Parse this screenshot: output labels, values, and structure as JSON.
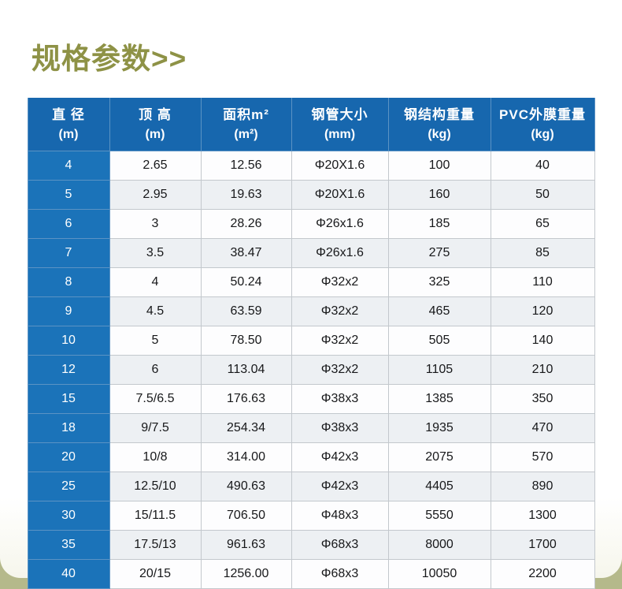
{
  "page": {
    "title": "规格参数>>"
  },
  "colors": {
    "header_bg": "#1767ae",
    "row_header_bg": "#1b73b9",
    "title_color": "#8e9246",
    "alt_row_bg": "#edf0f3",
    "grid_line": "#c3c8cd",
    "blue_grid_line": "#5b93c4",
    "cell_text": "#17181a",
    "header_text": "#ffffff",
    "page_bottom": "#b5b98b"
  },
  "chart_data": {
    "type": "table",
    "title": "规格参数",
    "columns": [
      "直 径 (m)",
      "顶 高 (m)",
      "面积m² (m²)",
      "钢管大小 (mm)",
      "钢结构重量 (kg)",
      "PVC外膜重量 (kg)"
    ],
    "header_lines": [
      [
        "直 径",
        "(m)"
      ],
      [
        "顶 高",
        "(m)"
      ],
      [
        "面积m²",
        "(m²)"
      ],
      [
        "钢管大小",
        "(mm)"
      ],
      [
        "钢结构重量",
        "(kg)"
      ],
      [
        "PVC外膜重量",
        "(kg)"
      ]
    ],
    "rows": [
      [
        "4",
        "2.65",
        "12.56",
        "Φ20X1.6",
        "100",
        "40"
      ],
      [
        "5",
        "2.95",
        "19.63",
        "Φ20X1.6",
        "160",
        "50"
      ],
      [
        "6",
        "3",
        "28.26",
        "Φ26x1.6",
        "185",
        "65"
      ],
      [
        "7",
        "3.5",
        "38.47",
        "Φ26x1.6",
        "275",
        "85"
      ],
      [
        "8",
        "4",
        "50.24",
        "Φ32x2",
        "325",
        "110"
      ],
      [
        "9",
        "4.5",
        "63.59",
        "Φ32x2",
        "465",
        "120"
      ],
      [
        "10",
        "5",
        "78.50",
        "Φ32x2",
        "505",
        "140"
      ],
      [
        "12",
        "6",
        "113.04",
        "Φ32x2",
        "1105",
        "210"
      ],
      [
        "15",
        "7.5/6.5",
        "176.63",
        "Φ38x3",
        "1385",
        "350"
      ],
      [
        "18",
        "9/7.5",
        "254.34",
        "Φ38x3",
        "1935",
        "470"
      ],
      [
        "20",
        "10/8",
        "314.00",
        "Φ42x3",
        "2075",
        "570"
      ],
      [
        "25",
        "12.5/10",
        "490.63",
        "Φ42x3",
        "4405",
        "890"
      ],
      [
        "30",
        "15/11.5",
        "706.50",
        "Φ48x3",
        "5550",
        "1300"
      ],
      [
        "35",
        "17.5/13",
        "961.63",
        "Φ68x3",
        "8000",
        "1700"
      ],
      [
        "40",
        "20/15",
        "1256.00",
        "Φ68x3",
        "10050",
        "2200"
      ]
    ]
  }
}
